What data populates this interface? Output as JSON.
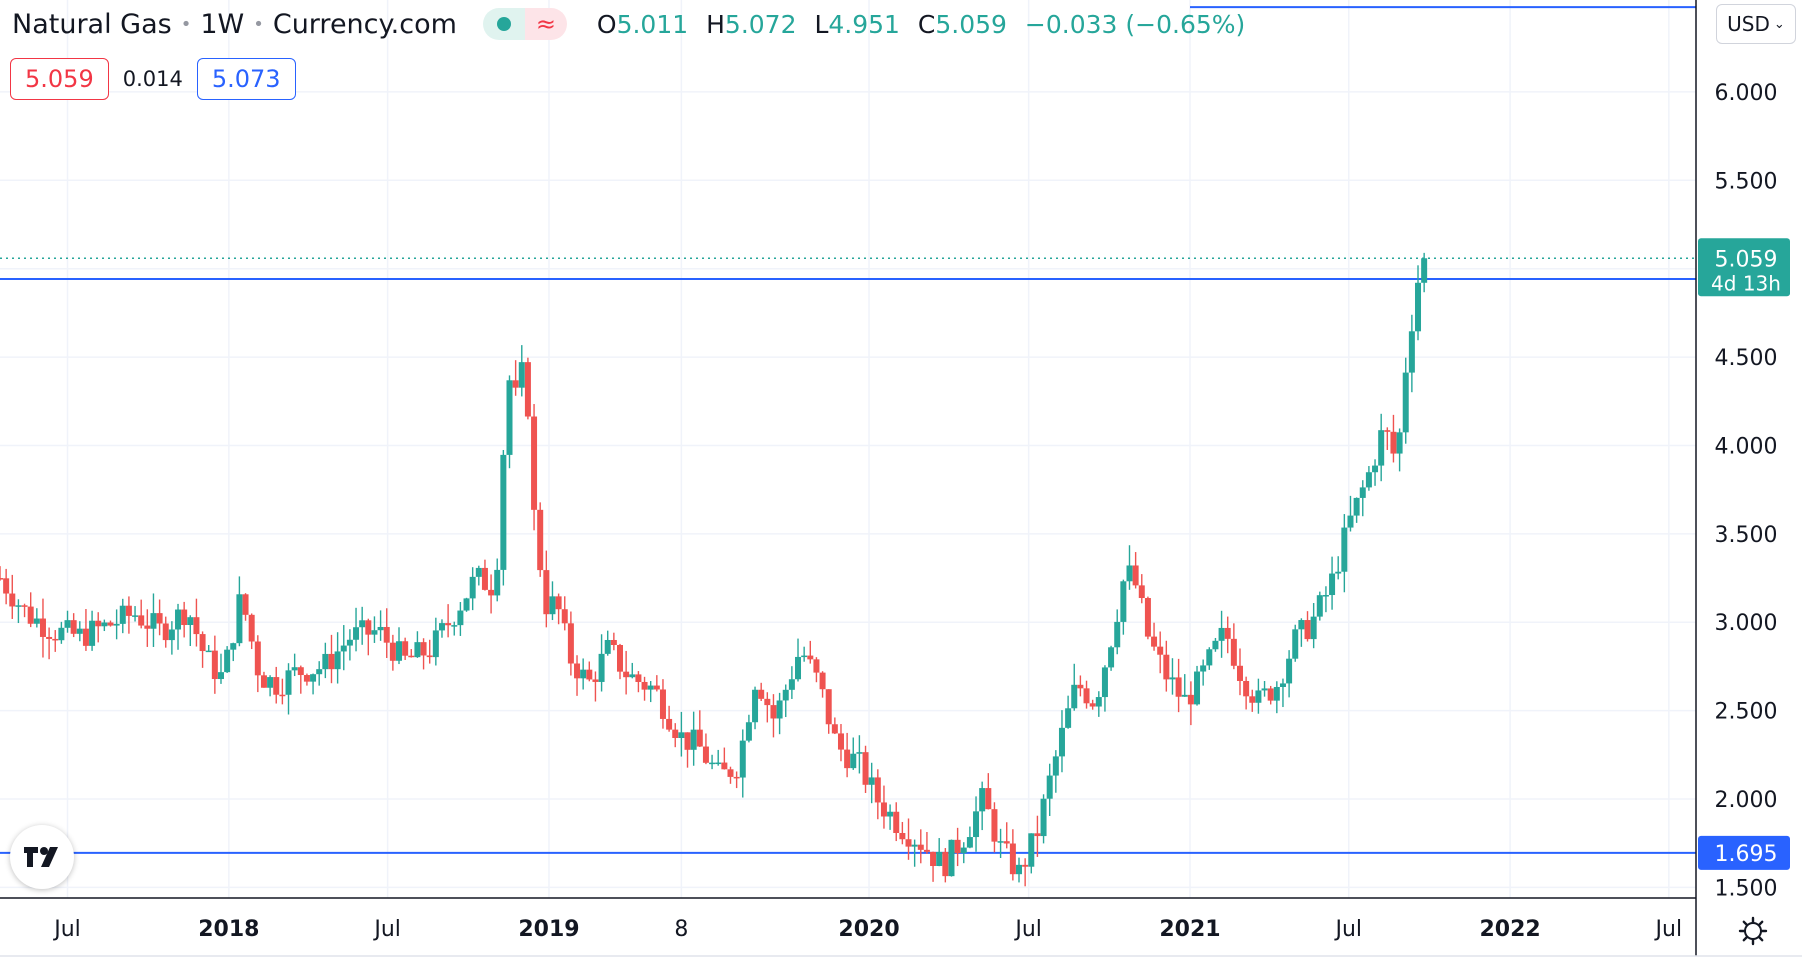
{
  "header": {
    "symbol": "Natural Gas",
    "interval": "1W",
    "source": "Currency.com",
    "ohlc": {
      "o_label": "O",
      "o": "5.011",
      "h_label": "H",
      "h": "5.072",
      "l_label": "L",
      "l": "4.951",
      "c_label": "C",
      "c": "5.059",
      "change": "−0.033 (−0.65%)"
    }
  },
  "quote": {
    "bid": "5.059",
    "spread": "0.014",
    "ask": "5.073"
  },
  "currency": "USD",
  "colors": {
    "up": "#26a69a",
    "down": "#ef5350",
    "line": "#2962ff",
    "grid": "#f0f3fa"
  },
  "chart_data": {
    "type": "candlestick",
    "interval": "weekly",
    "y_ticks": [
      "1.500",
      "2.000",
      "2.500",
      "3.000",
      "3.500",
      "4.000",
      "4.500",
      "5.000",
      "5.500",
      "6.000"
    ],
    "x_ticks": [
      {
        "label": "Jul",
        "date": "2017-07-01",
        "bold": false
      },
      {
        "label": "2018",
        "date": "2018-01-01",
        "bold": true
      },
      {
        "label": "Jul",
        "date": "2018-07-01",
        "bold": false
      },
      {
        "label": "2019",
        "date": "2019-01-01",
        "bold": true
      },
      {
        "label": "8",
        "date": "2019-06-01",
        "bold": false
      },
      {
        "label": "2020",
        "date": "2020-01-01",
        "bold": true
      },
      {
        "label": "Jul",
        "date": "2020-07-01",
        "bold": false
      },
      {
        "label": "2021",
        "date": "2021-01-01",
        "bold": true
      },
      {
        "label": "Jul",
        "date": "2021-07-01",
        "bold": false
      },
      {
        "label": "2022",
        "date": "2022-01-01",
        "bold": true
      },
      {
        "label": "Jul",
        "date": "2022-07-01",
        "bold": false
      }
    ],
    "x_range": [
      "2017-04-15",
      "2022-08-01"
    ],
    "y_range": [
      1.44,
      6.52
    ],
    "horizontal_lines": [
      {
        "price": 4.942,
        "label": "4.942"
      },
      {
        "price": 1.695,
        "label": "1.695"
      },
      {
        "price": 6.48,
        "label": ""
      }
    ],
    "last_price": {
      "price": 5.059,
      "label": "5.059",
      "countdown": "4d 13h"
    },
    "series": [
      {
        "date": "2017-04-15",
        "close": 3.25
      },
      {
        "date": "2017-05-15",
        "close": 3.05
      },
      {
        "date": "2017-06-15",
        "close": 2.95
      },
      {
        "date": "2017-07-15",
        "close": 2.92
      },
      {
        "date": "2017-08-15",
        "close": 2.98
      },
      {
        "date": "2017-09-15",
        "close": 3.05
      },
      {
        "date": "2017-10-15",
        "close": 2.95
      },
      {
        "date": "2017-11-15",
        "close": 3.08
      },
      {
        "date": "2017-12-05",
        "close": 2.8
      },
      {
        "date": "2017-12-25",
        "close": 2.68
      },
      {
        "date": "2018-01-15",
        "close": 3.15
      },
      {
        "date": "2018-02-05",
        "close": 2.7
      },
      {
        "date": "2018-02-25",
        "close": 2.65
      },
      {
        "date": "2018-03-20",
        "close": 2.72
      },
      {
        "date": "2018-04-20",
        "close": 2.75
      },
      {
        "date": "2018-05-20",
        "close": 2.92
      },
      {
        "date": "2018-06-20",
        "close": 2.95
      },
      {
        "date": "2018-07-20",
        "close": 2.78
      },
      {
        "date": "2018-08-20",
        "close": 2.85
      },
      {
        "date": "2018-09-15",
        "close": 3.05
      },
      {
        "date": "2018-10-10",
        "close": 3.25
      },
      {
        "date": "2018-11-01",
        "close": 3.2
      },
      {
        "date": "2018-11-15",
        "close": 4.4
      },
      {
        "date": "2018-11-25",
        "close": 4.25
      },
      {
        "date": "2018-12-05",
        "close": 4.5
      },
      {
        "date": "2018-12-15",
        "close": 3.6
      },
      {
        "date": "2018-12-28",
        "close": 3.1
      },
      {
        "date": "2019-01-10",
        "close": 3.1
      },
      {
        "date": "2019-01-25",
        "close": 2.8
      },
      {
        "date": "2019-02-15",
        "close": 2.65
      },
      {
        "date": "2019-03-10",
        "close": 2.85
      },
      {
        "date": "2019-04-01",
        "close": 2.7
      },
      {
        "date": "2019-05-01",
        "close": 2.62
      },
      {
        "date": "2019-06-01",
        "close": 2.35
      },
      {
        "date": "2019-06-20",
        "close": 2.3
      },
      {
        "date": "2019-07-15",
        "close": 2.12
      },
      {
        "date": "2019-08-05",
        "close": 2.2
      },
      {
        "date": "2019-08-25",
        "close": 2.7
      },
      {
        "date": "2019-09-15",
        "close": 2.45
      },
      {
        "date": "2019-10-15",
        "close": 2.85
      },
      {
        "date": "2019-11-05",
        "close": 2.65
      },
      {
        "date": "2019-11-25",
        "close": 2.3
      },
      {
        "date": "2019-12-20",
        "close": 2.2
      },
      {
        "date": "2020-01-10",
        "close": 2.0
      },
      {
        "date": "2020-02-05",
        "close": 1.85
      },
      {
        "date": "2020-03-01",
        "close": 1.75
      },
      {
        "date": "2020-03-25",
        "close": 1.62
      },
      {
        "date": "2020-04-20",
        "close": 1.8
      },
      {
        "date": "2020-05-10",
        "close": 2.0
      },
      {
        "date": "2020-05-30",
        "close": 1.72
      },
      {
        "date": "2020-06-20",
        "close": 1.58
      },
      {
        "date": "2020-07-10",
        "close": 1.8
      },
      {
        "date": "2020-07-25",
        "close": 2.1
      },
      {
        "date": "2020-08-10",
        "close": 2.4
      },
      {
        "date": "2020-08-25",
        "close": 2.65
      },
      {
        "date": "2020-09-15",
        "close": 2.55
      },
      {
        "date": "2020-10-05",
        "close": 2.95
      },
      {
        "date": "2020-10-20",
        "close": 3.3
      },
      {
        "date": "2020-11-01",
        "close": 3.2
      },
      {
        "date": "2020-11-15",
        "close": 2.9
      },
      {
        "date": "2020-12-05",
        "close": 2.7
      },
      {
        "date": "2020-12-25",
        "close": 2.55
      },
      {
        "date": "2021-01-10",
        "close": 2.65
      },
      {
        "date": "2021-01-25",
        "close": 2.8
      },
      {
        "date": "2021-02-10",
        "close": 2.95
      },
      {
        "date": "2021-03-01",
        "close": 2.7
      },
      {
        "date": "2021-03-20",
        "close": 2.55
      },
      {
        "date": "2021-04-10",
        "close": 2.65
      },
      {
        "date": "2021-05-01",
        "close": 2.9
      },
      {
        "date": "2021-05-20",
        "close": 3.0
      },
      {
        "date": "2021-06-10",
        "close": 3.2
      },
      {
        "date": "2021-07-01",
        "close": 3.55
      },
      {
        "date": "2021-07-25",
        "close": 3.85
      },
      {
        "date": "2021-08-10",
        "close": 4.1
      },
      {
        "date": "2021-08-25",
        "close": 3.9
      },
      {
        "date": "2021-09-05",
        "close": 4.5
      },
      {
        "date": "2021-09-15",
        "close": 4.85
      },
      {
        "date": "2021-09-22",
        "close": 5.05
      },
      {
        "date": "2021-09-28",
        "close": 5.059
      }
    ]
  }
}
